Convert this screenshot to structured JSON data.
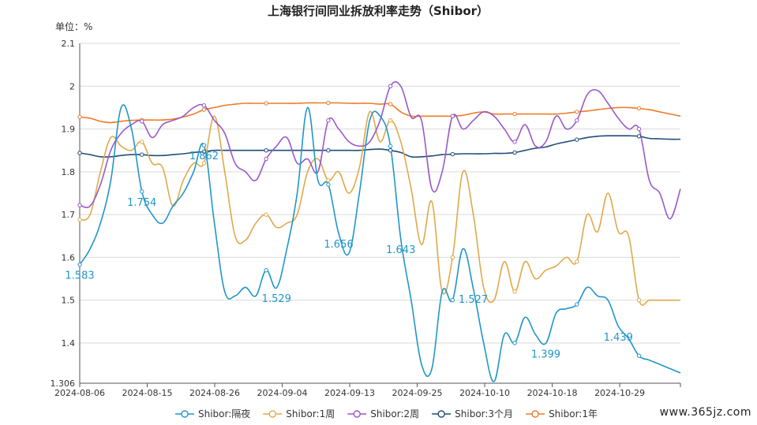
{
  "chart_data": {
    "type": "line",
    "title": "上海银行间同业拆放利率走势（Shibor）",
    "unit_label": "单位：%",
    "ylim": [
      1.306,
      2.1
    ],
    "y_ticks": [
      "1.306",
      "1.4",
      "1.5",
      "1.6",
      "1.7",
      "1.8",
      "1.9",
      "2",
      "2.1"
    ],
    "x_ticks": [
      "2024-08-06",
      "2024-08-15",
      "2024-08-26",
      "2024-09-04",
      "2024-09-13",
      "2024-09-25",
      "2024-10-10",
      "2024-10-18",
      "2024-10-29"
    ],
    "grid": "horizontal",
    "legend_position": "bottom",
    "series": [
      {
        "name": "Shibor:隔夜",
        "color": "#2196c9",
        "values": [
          1.583,
          1.62,
          1.68,
          1.78,
          1.95,
          1.9,
          1.754,
          1.7,
          1.68,
          1.72,
          1.75,
          1.8,
          1.862,
          1.68,
          1.52,
          1.51,
          1.53,
          1.51,
          1.57,
          1.529,
          1.62,
          1.75,
          1.95,
          1.78,
          1.77,
          1.656,
          1.61,
          1.75,
          1.92,
          1.93,
          1.86,
          1.643,
          1.5,
          1.35,
          1.34,
          1.52,
          1.5,
          1.62,
          1.527,
          1.4,
          1.31,
          1.42,
          1.4,
          1.46,
          1.42,
          1.399,
          1.47,
          1.48,
          1.49,
          1.53,
          1.51,
          1.5,
          1.439,
          1.41,
          1.37,
          1.36,
          1.35,
          1.34,
          1.33
        ]
      },
      {
        "name": "Shibor:1周",
        "color": "#e0a94a",
        "values": [
          1.688,
          1.7,
          1.8,
          1.88,
          1.86,
          1.85,
          1.87,
          1.82,
          1.81,
          1.72,
          1.78,
          1.82,
          1.82,
          1.93,
          1.8,
          1.65,
          1.64,
          1.68,
          1.7,
          1.67,
          1.68,
          1.7,
          1.8,
          1.83,
          1.78,
          1.8,
          1.75,
          1.81,
          1.94,
          1.87,
          1.92,
          1.87,
          1.76,
          1.63,
          1.73,
          1.52,
          1.6,
          1.8,
          1.7,
          1.53,
          1.5,
          1.59,
          1.52,
          1.59,
          1.55,
          1.57,
          1.58,
          1.6,
          1.59,
          1.7,
          1.66,
          1.75,
          1.66,
          1.65,
          1.5,
          1.5,
          1.5,
          1.5,
          1.5
        ]
      },
      {
        "name": "Shibor:2周",
        "color": "#9b59c7",
        "values": [
          1.722,
          1.72,
          1.77,
          1.85,
          1.89,
          1.91,
          1.918,
          1.88,
          1.91,
          1.92,
          1.93,
          1.95,
          1.955,
          1.92,
          1.89,
          1.82,
          1.8,
          1.78,
          1.83,
          1.86,
          1.88,
          1.82,
          1.83,
          1.8,
          1.92,
          1.9,
          1.87,
          1.86,
          1.87,
          1.92,
          2.0,
          2.0,
          1.928,
          1.92,
          1.76,
          1.8,
          1.93,
          1.9,
          1.92,
          1.94,
          1.93,
          1.9,
          1.87,
          1.91,
          1.86,
          1.87,
          1.93,
          1.9,
          1.92,
          1.98,
          1.99,
          1.96,
          1.925,
          1.9,
          1.9,
          1.78,
          1.75,
          1.69,
          1.76
        ]
      },
      {
        "name": "Shibor:3个月",
        "color": "#1f4e79",
        "values": [
          1.844,
          1.84,
          1.835,
          1.835,
          1.838,
          1.84,
          1.84,
          1.838,
          1.838,
          1.84,
          1.842,
          1.845,
          1.847,
          1.85,
          1.85,
          1.85,
          1.85,
          1.85,
          1.85,
          1.85,
          1.85,
          1.85,
          1.85,
          1.85,
          1.85,
          1.85,
          1.85,
          1.85,
          1.852,
          1.853,
          1.85,
          1.845,
          1.835,
          1.835,
          1.837,
          1.84,
          1.841,
          1.842,
          1.842,
          1.842,
          1.843,
          1.843,
          1.845,
          1.85,
          1.855,
          1.858,
          1.865,
          1.87,
          1.875,
          1.88,
          1.883,
          1.884,
          1.884,
          1.884,
          1.883,
          1.878,
          1.877,
          1.876,
          1.876
        ]
      },
      {
        "name": "Shibor:1年",
        "color": "#ee7b2a",
        "values": [
          1.928,
          1.925,
          1.918,
          1.915,
          1.918,
          1.92,
          1.921,
          1.921,
          1.921,
          1.923,
          1.928,
          1.935,
          1.945,
          1.95,
          1.955,
          1.958,
          1.96,
          1.96,
          1.96,
          1.96,
          1.96,
          1.96,
          1.961,
          1.961,
          1.961,
          1.961,
          1.96,
          1.96,
          1.96,
          1.958,
          1.958,
          1.94,
          1.93,
          1.93,
          1.93,
          1.93,
          1.93,
          1.932,
          1.937,
          1.94,
          1.935,
          1.935,
          1.935,
          1.935,
          1.935,
          1.935,
          1.935,
          1.937,
          1.94,
          1.942,
          1.945,
          1.948,
          1.95,
          1.95,
          1.948,
          1.945,
          1.94,
          1.935,
          1.93
        ]
      }
    ],
    "data_labels": [
      {
        "series": 0,
        "index": 0,
        "text": "1.583"
      },
      {
        "series": 0,
        "index": 6,
        "text": "1.754"
      },
      {
        "series": 0,
        "index": 12,
        "text": "1.862"
      },
      {
        "series": 0,
        "index": 19,
        "text": "1.529"
      },
      {
        "series": 0,
        "index": 25,
        "text": "1.656"
      },
      {
        "series": 0,
        "index": 31,
        "text": "1.643"
      },
      {
        "series": 0,
        "index": 38,
        "text": "1.527"
      },
      {
        "series": 0,
        "index": 45,
        "text": "1.399"
      },
      {
        "series": 0,
        "index": 52,
        "text": "1.439"
      }
    ]
  },
  "watermark": "www.365jz.com"
}
